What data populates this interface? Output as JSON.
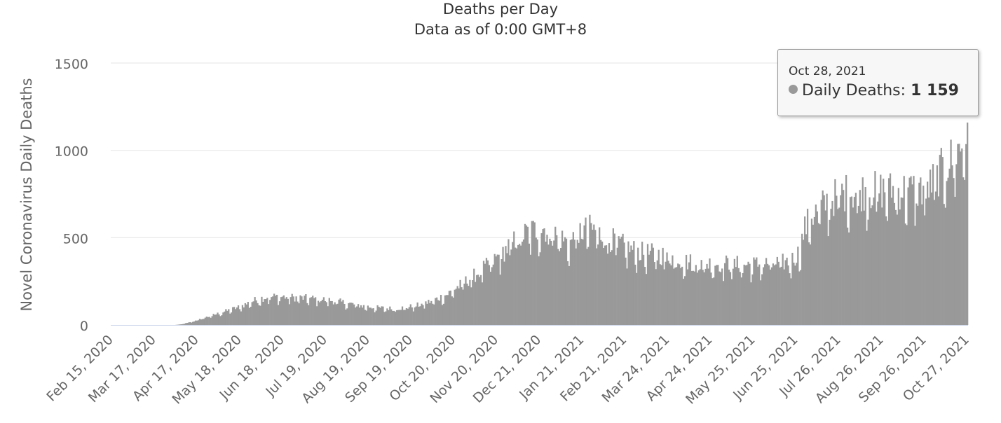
{
  "title": "Deaths per Day",
  "subtitle": "Data as of 0:00 GMT+8",
  "tooltip": {
    "date": "Oct 28, 2021",
    "series": "Daily Deaths",
    "value": "1 159"
  },
  "colors": {
    "series": "#999999",
    "grid": "#e6e6e6",
    "axis_text": "#666666"
  },
  "chart_data": {
    "type": "bar",
    "title": "Deaths per Day",
    "subtitle": "Data as of 0:00 GMT+8",
    "ylabel": "Novel Coronavirus Daily Deaths",
    "xlabel": "",
    "ylim": [
      0,
      1500
    ],
    "yticks": [
      0,
      500,
      1000,
      1500
    ],
    "grid": true,
    "x_tick_labels": [
      "Feb 15, 2020",
      "Mar 17, 2020",
      "Apr 17, 2020",
      "May 18, 2020",
      "Jun 18, 2020",
      "Jul 19, 2020",
      "Aug 19, 2020",
      "Sep 19, 2020",
      "Oct 20, 2020",
      "Nov 20, 2020",
      "Dec 21, 2020",
      "Jan 21, 2021",
      "Feb 21, 2021",
      "Mar 24, 2021",
      "Apr 24, 2021",
      "May 25, 2021",
      "Jun 25, 2021",
      "Jul 26, 2021",
      "Aug 26, 2021",
      "Sep 26, 2021",
      "Oct 27, 2021"
    ],
    "x_start": "2020-02-15",
    "x_end": "2021-10-28",
    "series": [
      {
        "name": "Daily Deaths",
        "anchor_values": [
          [
            "2020-02-15",
            0
          ],
          [
            "2020-04-01",
            0
          ],
          [
            "2020-04-05",
            3
          ],
          [
            "2020-04-12",
            15
          ],
          [
            "2020-04-20",
            35
          ],
          [
            "2020-04-28",
            55
          ],
          [
            "2020-05-08",
            80
          ],
          [
            "2020-05-18",
            105
          ],
          [
            "2020-05-28",
            140
          ],
          [
            "2020-06-05",
            160
          ],
          [
            "2020-06-15",
            165
          ],
          [
            "2020-06-25",
            160
          ],
          [
            "2020-07-05",
            155
          ],
          [
            "2020-07-15",
            150
          ],
          [
            "2020-07-25",
            140
          ],
          [
            "2020-08-05",
            125
          ],
          [
            "2020-08-15",
            110
          ],
          [
            "2020-08-25",
            100
          ],
          [
            "2020-09-05",
            95
          ],
          [
            "2020-09-15",
            100
          ],
          [
            "2020-09-25",
            115
          ],
          [
            "2020-10-05",
            140
          ],
          [
            "2020-10-15",
            175
          ],
          [
            "2020-10-25",
            230
          ],
          [
            "2020-11-05",
            290
          ],
          [
            "2020-11-15",
            350
          ],
          [
            "2020-11-25",
            420
          ],
          [
            "2020-12-05",
            500
          ],
          [
            "2020-12-15",
            545
          ],
          [
            "2020-12-25",
            560
          ],
          [
            "2021-01-05",
            510
          ],
          [
            "2021-01-12",
            470
          ],
          [
            "2021-01-20",
            540
          ],
          [
            "2021-01-28",
            560
          ],
          [
            "2021-02-05",
            520
          ],
          [
            "2021-02-15",
            480
          ],
          [
            "2021-02-25",
            440
          ],
          [
            "2021-03-05",
            420
          ],
          [
            "2021-03-15",
            410
          ],
          [
            "2021-03-25",
            400
          ],
          [
            "2021-04-05",
            370
          ],
          [
            "2021-04-15",
            355
          ],
          [
            "2021-04-25",
            355
          ],
          [
            "2021-05-05",
            355
          ],
          [
            "2021-05-15",
            350
          ],
          [
            "2021-05-25",
            350
          ],
          [
            "2021-06-05",
            355
          ],
          [
            "2021-06-15",
            360
          ],
          [
            "2021-06-22",
            370
          ],
          [
            "2021-06-28",
            420
          ],
          [
            "2021-07-02",
            560
          ],
          [
            "2021-07-06",
            620
          ],
          [
            "2021-07-12",
            670
          ],
          [
            "2021-07-20",
            720
          ],
          [
            "2021-07-28",
            760
          ],
          [
            "2021-08-05",
            770
          ],
          [
            "2021-08-15",
            775
          ],
          [
            "2021-08-25",
            780
          ],
          [
            "2021-09-05",
            780
          ],
          [
            "2021-09-15",
            780
          ],
          [
            "2021-09-25",
            785
          ],
          [
            "2021-10-01",
            810
          ],
          [
            "2021-10-06",
            860
          ],
          [
            "2021-10-12",
            920
          ],
          [
            "2021-10-18",
            975
          ],
          [
            "2021-10-24",
            1040
          ],
          [
            "2021-10-28",
            1159
          ]
        ]
      }
    ]
  }
}
